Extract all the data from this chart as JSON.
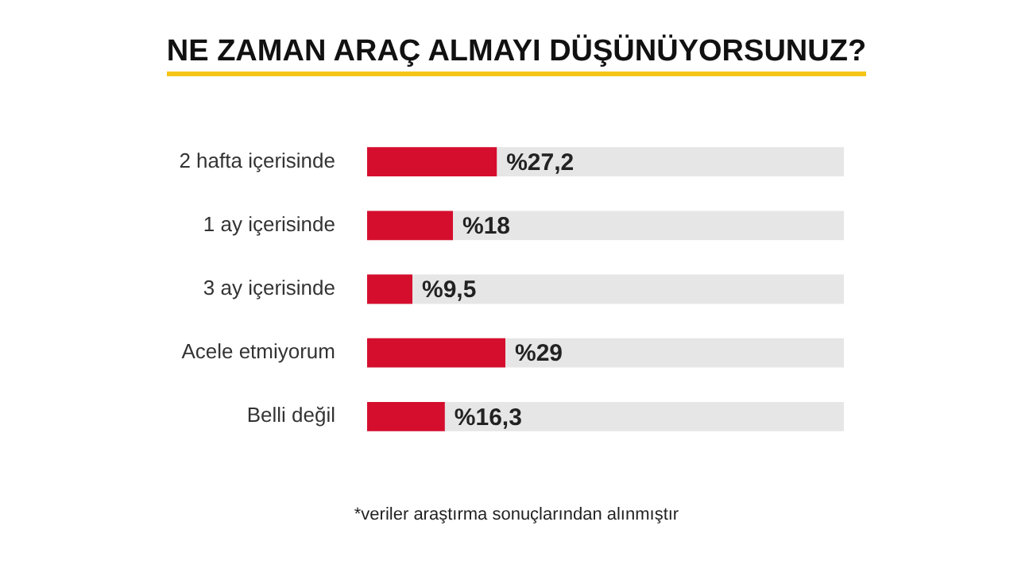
{
  "chart_data": {
    "type": "bar",
    "orientation": "horizontal",
    "title": "NE ZAMAN ARAÇ ALMAYI DÜŞÜNÜYORSUNUZ?",
    "categories": [
      "2 hafta içerisinde",
      "1 ay içerisinde",
      "3 ay içerisinde",
      "Acele etmiyorum",
      "Belli değil"
    ],
    "values": [
      27.2,
      18,
      9.5,
      29,
      16.3
    ],
    "value_labels": [
      "%27,2",
      "%18",
      "%9,5",
      "%29",
      "%16,3"
    ],
    "color": "#d50e2e",
    "xlim": [
      0,
      100
    ],
    "tick_labels": "y",
    "legend": false,
    "annotations": [
      "*veriler araştırma sonuçlarından alınmıştır"
    ]
  }
}
